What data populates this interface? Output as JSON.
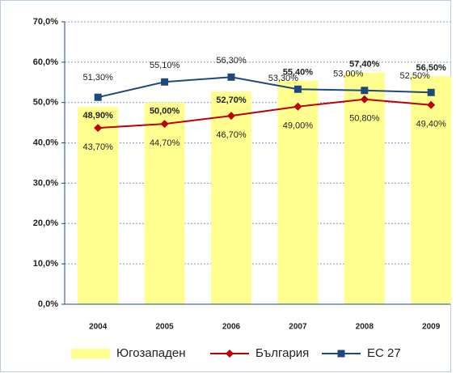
{
  "chart_data": {
    "type": "bar_line",
    "categories": [
      "2004",
      "2005",
      "2006",
      "2007",
      "2008",
      "2009"
    ],
    "series": [
      {
        "name": "Югозападен",
        "type": "bar",
        "color": "#ffff8f",
        "values": [
          48.9,
          50.0,
          52.7,
          55.4,
          57.4,
          56.5
        ],
        "value_labels": [
          "48,90%",
          "50,00%",
          "52,70%",
          "55,40%",
          "57,40%",
          "56,50%"
        ]
      },
      {
        "name": "България",
        "type": "line",
        "color": "#c00000",
        "values": [
          43.7,
          44.7,
          46.7,
          49.0,
          50.8,
          49.4
        ],
        "value_labels": [
          "43,70%",
          "44,70%",
          "46,70%",
          "49,00%",
          "50,80%",
          "49,40%"
        ]
      },
      {
        "name": "ЕС 27",
        "type": "line",
        "color": "#1f497d",
        "values": [
          51.3,
          55.1,
          56.3,
          53.3,
          53.0,
          52.5
        ],
        "value_labels": [
          "51,30%",
          "55,10%",
          "56,30%",
          "53,30%",
          "53,00%",
          "52,50%"
        ]
      }
    ],
    "ylim": [
      0,
      70
    ],
    "yticks": [
      {
        "value": 0,
        "label": "0,0%"
      },
      {
        "value": 10,
        "label": "10,0%"
      },
      {
        "value": 20,
        "label": "20,0%"
      },
      {
        "value": 30,
        "label": "30,0%"
      },
      {
        "value": 40,
        "label": "40,0%"
      },
      {
        "value": 50,
        "label": "50,0%"
      },
      {
        "value": 60,
        "label": "60,0%"
      },
      {
        "value": 70,
        "label": "70,0%"
      }
    ],
    "grid": true,
    "legend": "bottom"
  }
}
